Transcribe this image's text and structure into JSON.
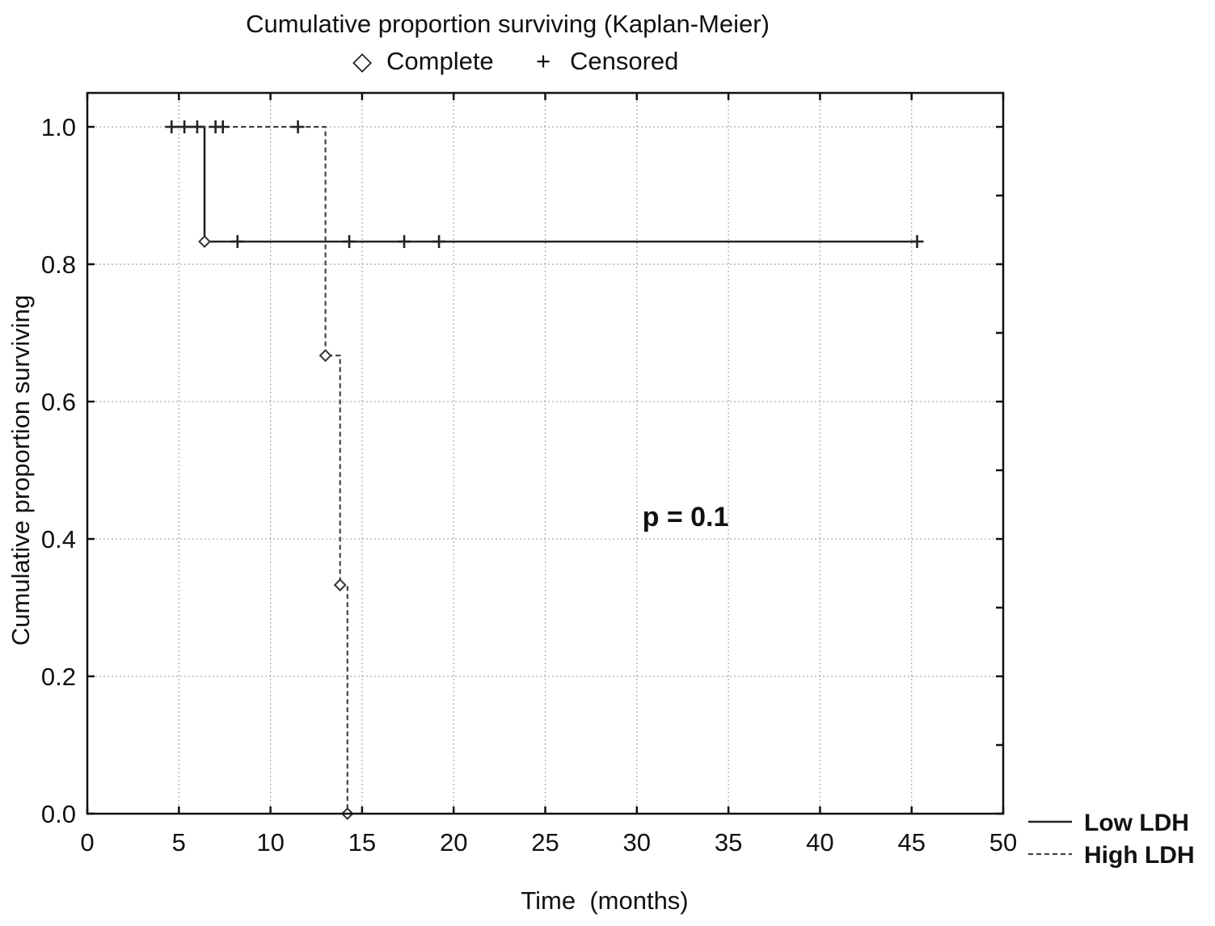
{
  "chart_data": {
    "type": "line",
    "title": "Cumulative proportion surviving (Kaplan-Meier)",
    "marker_legend": [
      {
        "symbol": "◇",
        "label": "Complete"
      },
      {
        "symbol": "+",
        "label": "Censored"
      }
    ],
    "xlabel": "Time  (months)",
    "ylabel": "Cumulative proportion surviving",
    "xlim": [
      0,
      50
    ],
    "ylim": [
      0,
      1.05
    ],
    "x_ticks": [
      "0",
      "5",
      "10",
      "15",
      "20",
      "25",
      "30",
      "35",
      "40",
      "45",
      "50"
    ],
    "y_ticks": [
      "0.0",
      "0.2",
      "0.4",
      "0.6",
      "0.8",
      "1.0"
    ],
    "grid": true,
    "annotation": "p = 0.1",
    "legend_position": "bottom-right, outside plot",
    "series": [
      {
        "name": "Low LDH",
        "style": "solid",
        "steps": [
          {
            "x": 4.6,
            "y": 1.0
          },
          {
            "x": 6.4,
            "y": 1.0
          },
          {
            "x": 6.4,
            "y": 0.833
          },
          {
            "x": 45.3,
            "y": 0.833
          }
        ],
        "events": [
          {
            "x": 6.4,
            "y": 0.833
          }
        ],
        "censored": [
          {
            "x": 4.6,
            "y": 1.0
          },
          {
            "x": 6.0,
            "y": 1.0
          },
          {
            "x": 8.2,
            "y": 0.833
          },
          {
            "x": 14.3,
            "y": 0.833
          },
          {
            "x": 17.3,
            "y": 0.833
          },
          {
            "x": 19.2,
            "y": 0.833
          },
          {
            "x": 45.3,
            "y": 0.833
          }
        ]
      },
      {
        "name": "High LDH",
        "style": "dashed",
        "steps": [
          {
            "x": 5.3,
            "y": 1.0
          },
          {
            "x": 13.0,
            "y": 1.0
          },
          {
            "x": 13.0,
            "y": 0.667
          },
          {
            "x": 13.8,
            "y": 0.667
          },
          {
            "x": 13.8,
            "y": 0.333
          },
          {
            "x": 14.2,
            "y": 0.333
          },
          {
            "x": 14.2,
            "y": 0.0
          }
        ],
        "events": [
          {
            "x": 13.0,
            "y": 0.667
          },
          {
            "x": 13.8,
            "y": 0.333
          },
          {
            "x": 14.2,
            "y": 0.0
          }
        ],
        "censored": [
          {
            "x": 5.3,
            "y": 1.0
          },
          {
            "x": 7.0,
            "y": 1.0
          },
          {
            "x": 7.4,
            "y": 1.0
          },
          {
            "x": 11.5,
            "y": 1.0
          }
        ]
      }
    ],
    "colors": {
      "axis": "#111111",
      "grid": "#a9a9a9",
      "low": "#222222",
      "high": "#444444"
    }
  }
}
